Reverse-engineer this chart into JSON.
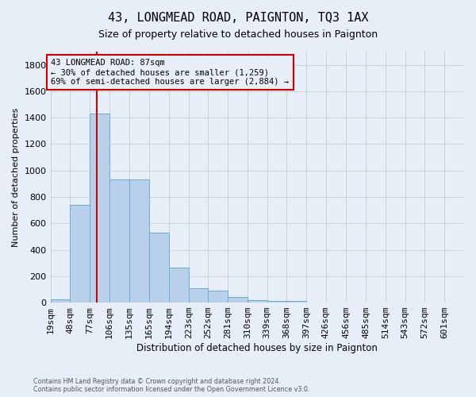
{
  "title": "43, LONGMEAD ROAD, PAIGNTON, TQ3 1AX",
  "subtitle": "Size of property relative to detached houses in Paignton",
  "xlabel": "Distribution of detached houses by size in Paignton",
  "ylabel": "Number of detached properties",
  "footer_line1": "Contains HM Land Registry data © Crown copyright and database right 2024.",
  "footer_line2": "Contains public sector information licensed under the Open Government Licence v3.0.",
  "annotation_title": "43 LONGMEAD ROAD: 87sqm",
  "annotation_line2": "← 30% of detached houses are smaller (1,259)",
  "annotation_line3": "69% of semi-detached houses are larger (2,884) →",
  "bar_categories": [
    "19sqm",
    "48sqm",
    "77sqm",
    "106sqm",
    "135sqm",
    "165sqm",
    "194sqm",
    "223sqm",
    "252sqm",
    "281sqm",
    "310sqm",
    "339sqm",
    "368sqm",
    "397sqm",
    "426sqm",
    "456sqm",
    "485sqm",
    "514sqm",
    "543sqm",
    "572sqm",
    "601sqm"
  ],
  "bin_edges": [
    19,
    48,
    77,
    106,
    135,
    165,
    194,
    223,
    252,
    281,
    310,
    339,
    368,
    397,
    426,
    456,
    485,
    514,
    543,
    572,
    601,
    630
  ],
  "bin_heights": [
    25,
    740,
    1430,
    935,
    935,
    530,
    265,
    110,
    90,
    40,
    20,
    15,
    15,
    0,
    0,
    0,
    0,
    0,
    0,
    0,
    0
  ],
  "bar_color": "#b8d0ea",
  "bar_edge_color": "#6aaad4",
  "grid_color": "#cccccc",
  "vline_color": "#cc0000",
  "vline_x": 87,
  "ann_box_edge_color": "#cc0000",
  "ylim_max": 1900,
  "yticks": [
    0,
    200,
    400,
    600,
    800,
    1000,
    1200,
    1400,
    1600,
    1800
  ],
  "background_color": "#e8eef8",
  "title_fontsize": 11,
  "subtitle_fontsize": 9,
  "ylabel_fontsize": 8,
  "xlabel_fontsize": 8.5,
  "tick_fontsize": 8,
  "xtick_fontsize": 6.5,
  "footer_fontsize": 5.8,
  "ann_fontsize": 7.5
}
